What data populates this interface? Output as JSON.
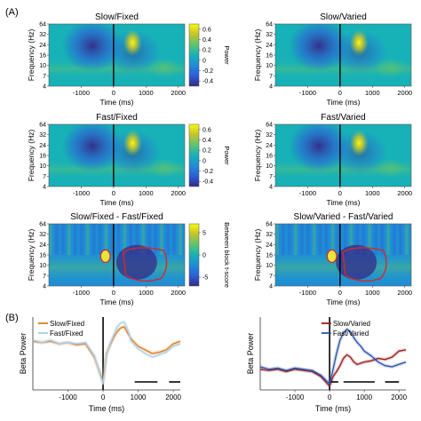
{
  "figure": {
    "panel_labels": [
      "(A)",
      "(B)"
    ]
  },
  "colors": {
    "cmap": [
      "#352a87",
      "#2c5fd7",
      "#1f8ed5",
      "#17b1b8",
      "#5fc46d",
      "#c7c32c",
      "#f9fb0e"
    ],
    "blob": "#e7e43a",
    "contour": "#d62828",
    "slow_fixed": "#e07b1a",
    "fast_fixed": "#a8cfe8",
    "slow_varied": "#9b1b1b",
    "fast_varied": "#2a52a8",
    "onset_line": "#000000",
    "sig_bar": "#000000"
  },
  "chart_data": [
    {
      "type": "heatmap",
      "title": "Slow/Fixed",
      "xlabel": "Time (ms)",
      "ylabel": "Frequency (Hz)",
      "x_ticks": [
        "-1000",
        "0",
        "1000",
        "2000"
      ],
      "y_ticks": [
        "64",
        "32",
        "24",
        "16",
        "10",
        "7",
        "4"
      ],
      "colorbar": {
        "label": "Power",
        "ticks": [
          "0.6",
          "0.4",
          "0.2",
          "0",
          "-0.2",
          "-0.4"
        ],
        "range": [
          -0.5,
          0.7
        ]
      }
    },
    {
      "type": "heatmap",
      "title": "Slow/Varied",
      "xlabel": "Time (ms)",
      "ylabel": "Frequency (Hz)",
      "x_ticks": [
        "-1000",
        "0",
        "1000",
        "2000"
      ],
      "y_ticks": [
        "64",
        "32",
        "24",
        "16",
        "10",
        "7",
        "4"
      ]
    },
    {
      "type": "heatmap",
      "title": "Fast/Fixed",
      "xlabel": "Time (ms)",
      "ylabel": "Frequency (Hz)",
      "x_ticks": [
        "-1000",
        "0",
        "1000",
        "2000"
      ],
      "y_ticks": [
        "64",
        "32",
        "24",
        "16",
        "10",
        "7",
        "4"
      ],
      "colorbar": {
        "label": "Power",
        "ticks": [
          "0.6",
          "0.4",
          "0.2",
          "0",
          "-0.2",
          "-0.4"
        ],
        "range": [
          -0.5,
          0.7
        ]
      }
    },
    {
      "type": "heatmap",
      "title": "Fast/Varied",
      "xlabel": "Time (ms)",
      "ylabel": "Frequency (Hz)",
      "x_ticks": [
        "-1000",
        "0",
        "1000",
        "2000"
      ],
      "y_ticks": [
        "64",
        "32",
        "24",
        "16",
        "10",
        "7",
        "4"
      ]
    },
    {
      "type": "heatmap",
      "title": "Slow/Fixed - Fast/Fixed",
      "xlabel": "Time (ms)",
      "ylabel": "Frequency (Hz)",
      "x_ticks": [
        "-1000",
        "0",
        "1000",
        "2000"
      ],
      "y_ticks": [
        "64",
        "32",
        "24",
        "16",
        "10",
        "7",
        "4"
      ],
      "colorbar": {
        "label": "Between block t-score",
        "ticks": [
          "5",
          "0",
          "-5"
        ],
        "range": [
          -7,
          7
        ]
      }
    },
    {
      "type": "heatmap",
      "title": "Slow/Varied - Fast/Varied",
      "xlabel": "Time (ms)",
      "ylabel": "Frequency (Hz)",
      "x_ticks": [
        "-1000",
        "0",
        "1000",
        "2000"
      ],
      "y_ticks": [
        "64",
        "32",
        "24",
        "16",
        "10",
        "7",
        "4"
      ]
    },
    {
      "type": "line",
      "xlabel": "Time (ms)",
      "ylabel": "Beta Power",
      "xlim": [
        -2000,
        2200
      ],
      "ylim": [
        -0.35,
        0.25
      ],
      "x_ticks": [
        "-1000",
        "0",
        "1000",
        "2000"
      ],
      "x": [
        -2000,
        -1750,
        -1500,
        -1250,
        -1000,
        -750,
        -500,
        -250,
        0,
        100,
        200,
        300,
        400,
        500,
        600,
        700,
        800,
        900,
        1000,
        1200,
        1400,
        1600,
        1800,
        2000,
        2200
      ],
      "series": [
        {
          "name": "Slow/Fixed",
          "values": [
            0.05,
            0.04,
            0.05,
            0.03,
            0.04,
            0.02,
            0.03,
            -0.08,
            -0.28,
            -0.05,
            0.02,
            0.08,
            0.13,
            0.16,
            0.17,
            0.12,
            0.07,
            0.04,
            0.01,
            -0.02,
            -0.05,
            -0.04,
            -0.02,
            0.03,
            0.05
          ]
        },
        {
          "name": "Fast/Fixed",
          "values": [
            0.06,
            0.04,
            0.06,
            0.03,
            0.04,
            0.03,
            0.04,
            -0.07,
            -0.3,
            -0.06,
            0.03,
            0.1,
            0.17,
            0.2,
            0.21,
            0.15,
            0.05,
            0.02,
            -0.01,
            -0.05,
            -0.08,
            -0.06,
            -0.04,
            0.01,
            0.03
          ]
        }
      ],
      "legend": "top-left",
      "sig_bars_ms": [
        [
          900,
          1550
        ],
        [
          1880,
          2200
        ]
      ]
    },
    {
      "type": "line",
      "xlabel": "Time (ms)",
      "ylabel": "Beta Power",
      "xlim": [
        -2000,
        2200
      ],
      "ylim": [
        -0.35,
        0.25
      ],
      "x_ticks": [
        "-1000",
        "0",
        "1000",
        "2000"
      ],
      "x": [
        -2000,
        -1750,
        -1500,
        -1250,
        -1000,
        -750,
        -500,
        -250,
        0,
        100,
        200,
        300,
        400,
        500,
        600,
        700,
        800,
        900,
        1000,
        1200,
        1400,
        1600,
        1800,
        2000,
        2200
      ],
      "series": [
        {
          "name": "Slow/Varied",
          "values": [
            -0.18,
            -0.19,
            -0.18,
            -0.2,
            -0.18,
            -0.19,
            -0.2,
            -0.24,
            -0.32,
            -0.24,
            -0.2,
            -0.15,
            -0.09,
            -0.06,
            -0.08,
            -0.12,
            -0.14,
            -0.13,
            -0.12,
            -0.11,
            -0.09,
            -0.1,
            -0.08,
            -0.03,
            -0.02
          ]
        },
        {
          "name": "Fast/Varied",
          "values": [
            -0.16,
            -0.18,
            -0.17,
            -0.19,
            -0.17,
            -0.18,
            -0.19,
            -0.23,
            -0.3,
            -0.18,
            -0.05,
            0.06,
            0.12,
            0.15,
            0.13,
            0.08,
            0.04,
            0.01,
            -0.03,
            -0.07,
            -0.12,
            -0.15,
            -0.16,
            -0.14,
            -0.12
          ]
        }
      ],
      "legend": "top-right",
      "sig_bars_ms": [
        [
          50,
          250
        ],
        [
          400,
          1300
        ],
        [
          1600,
          2000
        ]
      ]
    }
  ]
}
